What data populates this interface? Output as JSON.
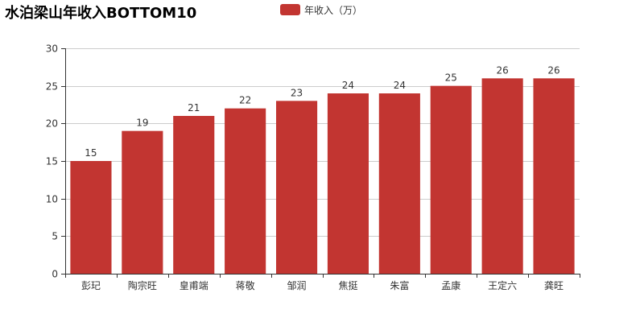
{
  "chart_data": {
    "type": "bar",
    "title": "水泊梁山年收入BOTTOM10",
    "categories": [
      "彭玘",
      "陶宗旺",
      "皇甫端",
      "蒋敬",
      "邹润",
      "焦挺",
      "朱富",
      "孟康",
      "王定六",
      "龚旺"
    ],
    "series": [
      {
        "name": "年收入（万）",
        "values": [
          15,
          19,
          21,
          22,
          23,
          24,
          24,
          25,
          26,
          26
        ],
        "color": "#c23531"
      }
    ],
    "yticks": [
      0,
      5,
      10,
      15,
      20,
      25,
      30
    ],
    "ylim": [
      0,
      30
    ],
    "grid": true,
    "legend_position": "top-center",
    "data_labels": true
  }
}
